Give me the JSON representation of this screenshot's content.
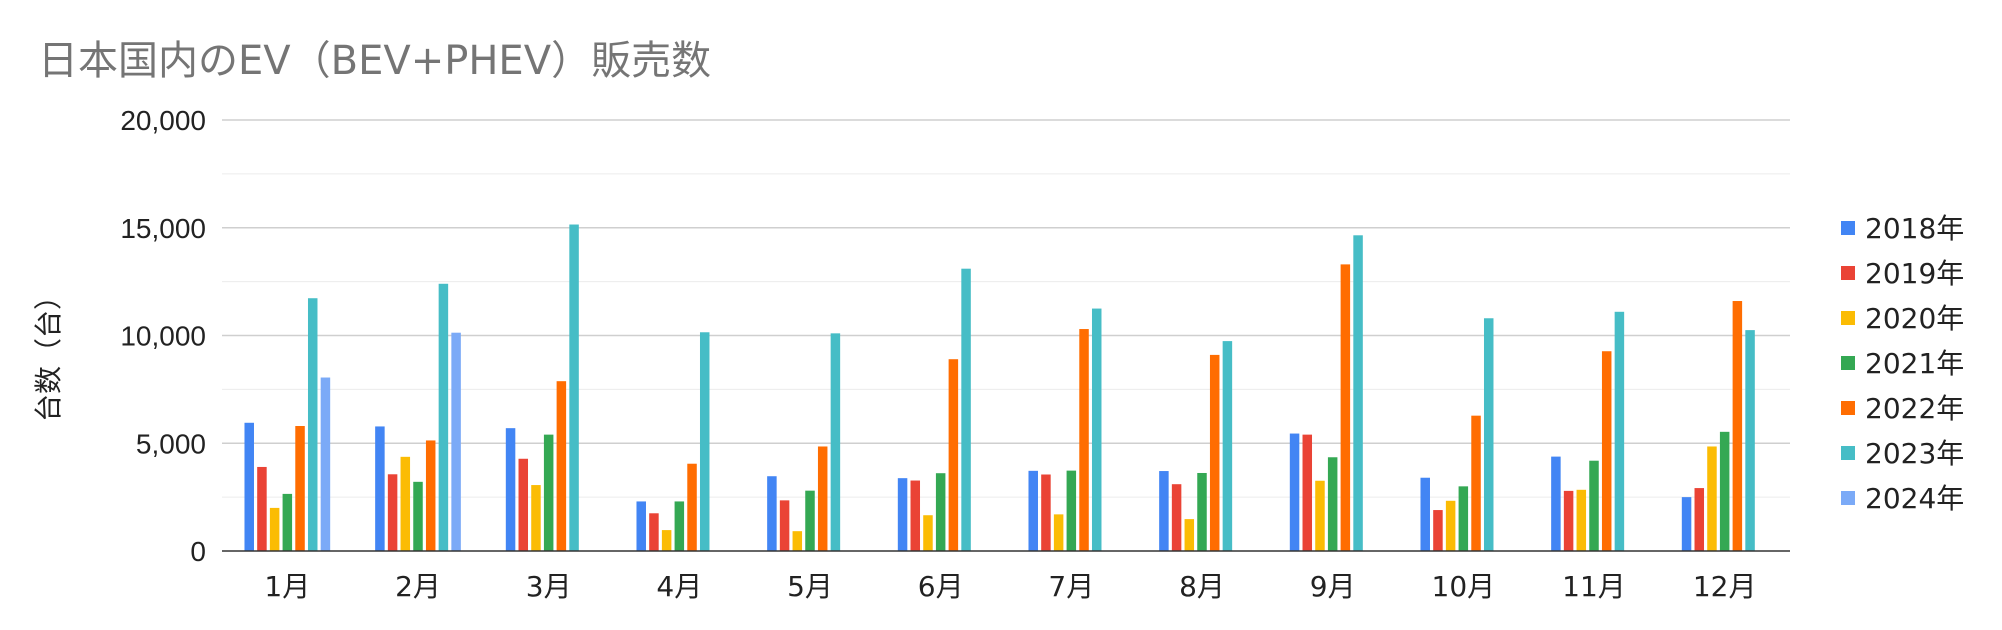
{
  "chart_data": {
    "type": "bar",
    "title": "日本国内のEV（BEV+PHEV）販売数",
    "ylabel": "台数（台）",
    "xlabel": "",
    "ylim": [
      0,
      20000
    ],
    "yticks": [
      "0",
      "5,000",
      "10,000",
      "15,000",
      "20,000"
    ],
    "ytick_values": [
      0,
      5000,
      10000,
      15000,
      20000
    ],
    "grid": true,
    "legend_position": "right",
    "categories": [
      "1月",
      "2月",
      "3月",
      "4月",
      "5月",
      "6月",
      "7月",
      "8月",
      "9月",
      "10月",
      "11月",
      "12月"
    ],
    "series": [
      {
        "name": "2018年",
        "color": "#4285f4",
        "values": [
          5950,
          5780,
          5700,
          2300,
          3470,
          3380,
          3720,
          3710,
          5450,
          3400,
          4380,
          2500
        ]
      },
      {
        "name": "2019年",
        "color": "#ea4335",
        "values": [
          3900,
          3560,
          4280,
          1750,
          2350,
          3270,
          3550,
          3100,
          5400,
          1900,
          2790,
          2920
        ]
      },
      {
        "name": "2020年",
        "color": "#fbbc04",
        "values": [
          2000,
          4370,
          3060,
          970,
          920,
          1660,
          1700,
          1480,
          3260,
          2330,
          2840,
          4850
        ]
      },
      {
        "name": "2021年",
        "color": "#34a853",
        "values": [
          2650,
          3210,
          5400,
          2300,
          2800,
          3610,
          3730,
          3620,
          4350,
          3000,
          4190,
          5530
        ]
      },
      {
        "name": "2022年",
        "color": "#ff6d01",
        "values": [
          5800,
          5130,
          7880,
          4050,
          4850,
          8900,
          10300,
          9100,
          13300,
          6280,
          9270,
          11600
        ]
      },
      {
        "name": "2023年",
        "color": "#46bdc6",
        "values": [
          11730,
          12400,
          15150,
          10150,
          10100,
          13100,
          11250,
          9740,
          14650,
          10800,
          11100,
          10250
        ]
      },
      {
        "name": "2024年",
        "color": "#7baaf7",
        "values": [
          8050,
          10130,
          null,
          null,
          null,
          null,
          null,
          null,
          null,
          null,
          null,
          null
        ]
      }
    ]
  }
}
